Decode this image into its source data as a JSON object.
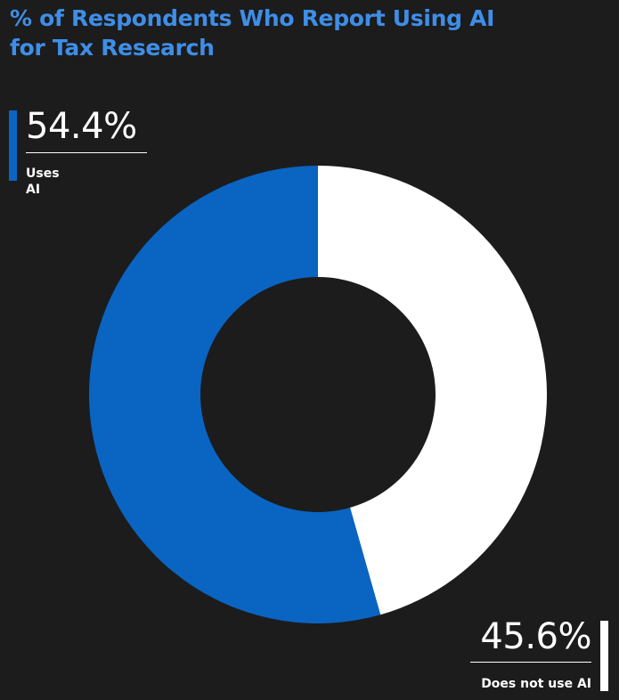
{
  "chart_data": {
    "type": "pie",
    "style": "donut",
    "title": "% of Respondents Who Report Using AI for Tax Research",
    "categories": [
      "Uses AI",
      "Does not use AI"
    ],
    "values": [
      54.4,
      45.6
    ],
    "value_labels": [
      "54.4%",
      "45.6%"
    ],
    "colors": [
      "#0a64c2",
      "#ffffff"
    ],
    "legend": "none",
    "grid": false
  },
  "colors": {
    "background": "#1c1c1c",
    "title": "#3e8ee8"
  }
}
